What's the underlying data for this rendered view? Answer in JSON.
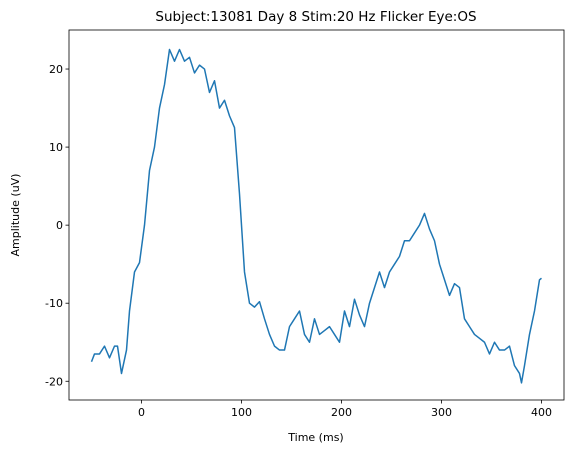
{
  "chart_data": {
    "type": "line",
    "title": "Subject:13081 Day 8 Stim:20 Hz Flicker Eye:OS",
    "x_label": "Time (ms)",
    "y_label": "Amplitude (uV)",
    "x": [
      -50,
      -47,
      -42,
      -37,
      -32,
      -27,
      -24,
      -20,
      -15,
      -12,
      -7,
      -2,
      3,
      8,
      13,
      18,
      23,
      28,
      33,
      38,
      43,
      48,
      53,
      58,
      63,
      68,
      73,
      78,
      83,
      88,
      93,
      98,
      103,
      108,
      113,
      118,
      123,
      128,
      133,
      138,
      143,
      148,
      153,
      158,
      163,
      168,
      173,
      178,
      183,
      188,
      193,
      198,
      203,
      208,
      213,
      218,
      223,
      228,
      233,
      238,
      243,
      248,
      253,
      258,
      263,
      268,
      273,
      278,
      283,
      288,
      293,
      298,
      303,
      308,
      313,
      318,
      323,
      328,
      333,
      338,
      343,
      348,
      353,
      358,
      363,
      368,
      373,
      378,
      380,
      383,
      388,
      393,
      398,
      400
    ],
    "series": [
      {
        "name": "amplitude",
        "color": "#1f77b4",
        "values": [
          -17.5,
          -16.5,
          -16.5,
          -15.5,
          -17,
          -15.5,
          -15.5,
          -19,
          -16,
          -11,
          -6,
          -4.8,
          0,
          7,
          10,
          15,
          18,
          22.5,
          21,
          22.5,
          21,
          21.5,
          19.5,
          20.5,
          20,
          17,
          18.5,
          15,
          16,
          14,
          12.5,
          4,
          -6,
          -10,
          -10.5,
          -9.8,
          -12,
          -14,
          -15.5,
          -16,
          -16,
          -13,
          -12,
          -11,
          -14,
          -15,
          -12,
          -14,
          -13.5,
          -13,
          -14,
          -15,
          -11,
          -13,
          -9.5,
          -11.5,
          -13,
          -10,
          -8,
          -6,
          -8,
          -6,
          -5,
          -4,
          -2,
          -2,
          -1,
          0,
          1.5,
          -0.5,
          -2,
          -5,
          -7,
          -9,
          -7.5,
          -8,
          -12,
          -13,
          -14,
          -14.5,
          -15,
          -16.5,
          -15,
          -16,
          -16,
          -15.5,
          -18,
          -19,
          -20.2,
          -18,
          -14,
          -11,
          -7,
          -6.8
        ]
      }
    ],
    "xlim": [
      -72.5,
      422.5
    ],
    "xticks": [
      0,
      100,
      200,
      300,
      400
    ],
    "ylim": [
      -22.4,
      25
    ],
    "yticks": [
      -20,
      -10,
      0,
      10,
      20
    ],
    "grid": false
  }
}
